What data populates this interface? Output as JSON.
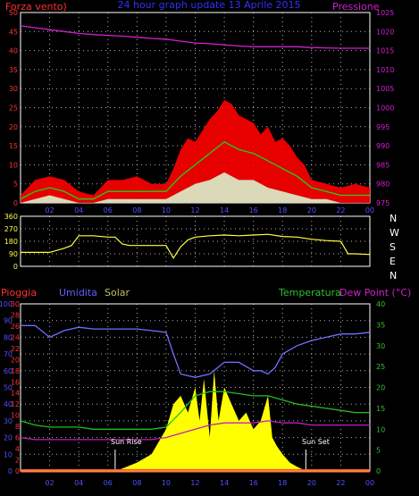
{
  "colors": {
    "background": "#000000",
    "wind": "#ff2020",
    "gust": "#ff0000",
    "wind_avg": "#20d020",
    "wind_low": "#d8ffd8",
    "pressure": "#d020d0",
    "direction": "#ffff40",
    "humidity": "#7070ff",
    "temperature": "#20c020",
    "dewpoint": "#c020c0",
    "solar": "#ffff00",
    "rain": "#ff2020",
    "axis_left_top": "#ff3030",
    "axis_right_top": "#d020d0",
    "axis_dir": "#ffff40",
    "axis_rain": "#ff3030",
    "axis_hum": "#5050ff",
    "axis_temp": "#30c030",
    "grid": "#ffffff",
    "xtick": "#5050ff",
    "bar_bottom": "#ff8040"
  },
  "header": {
    "title": "24 hour graph update 13 Aprile 2015",
    "left_label": "Forza vento)",
    "right_label": "Pressione"
  },
  "mid": {
    "dir_labels": [
      "N",
      "W",
      "S",
      "E",
      "N"
    ]
  },
  "bottom_labels": {
    "rain": "Pioggia",
    "humidity": "Umidita",
    "solar": "Solar",
    "temperature": "Temperatura",
    "dewpoint": "Dew Point (°C)",
    "sunrise": "Sun Rise",
    "sunset": "Sun Set"
  },
  "chart_data": [
    {
      "type": "line",
      "panel": "wind",
      "x_ticks": [
        "02",
        "04",
        "06",
        "08",
        "10",
        "12",
        "14",
        "16",
        "18",
        "20",
        "22",
        "00"
      ],
      "x_range": [
        0,
        24
      ],
      "y_left_ticks": [
        0,
        5,
        10,
        15,
        20,
        25,
        30,
        35,
        40,
        45,
        50
      ],
      "y_right_ticks": [
        975,
        980,
        985,
        990,
        995,
        1000,
        1005,
        1010,
        1015,
        1020,
        1025
      ],
      "y_left_range": [
        0,
        50
      ],
      "y_right_range": [
        975,
        1025
      ],
      "series": [
        {
          "key": "pressure",
          "axis": "right",
          "x": [
            0,
            1,
            2,
            3,
            4,
            5,
            6,
            7,
            8,
            9,
            10,
            11,
            12,
            13,
            14,
            15,
            16,
            17,
            18,
            19,
            20,
            21,
            22,
            23,
            24
          ],
          "y": [
            1021.5,
            1021,
            1020.5,
            1020,
            1019.5,
            1019.2,
            1019,
            1018.8,
            1018.5,
            1018.2,
            1018,
            1017.5,
            1017,
            1016.8,
            1016.5,
            1016.2,
            1016,
            1016,
            1016,
            1016,
            1015.8,
            1015.7,
            1015.6,
            1015.6,
            1015.6
          ]
        },
        {
          "key": "gust",
          "axis": "left",
          "x": [
            0,
            1,
            2,
            3,
            4,
            5,
            6,
            7,
            8,
            9,
            10,
            10.5,
            11,
            11.5,
            12,
            12.5,
            13,
            13.5,
            14,
            14.5,
            15,
            15.5,
            16,
            16.5,
            17,
            17.5,
            18,
            18.5,
            19,
            19.5,
            20,
            21,
            22,
            23,
            24
          ],
          "y": [
            2,
            6,
            7,
            6,
            3,
            2,
            6,
            6,
            7,
            5,
            5,
            9,
            14,
            17,
            16,
            19,
            22,
            24,
            27,
            26,
            23,
            22,
            21,
            18,
            20,
            16,
            17,
            15,
            12,
            10,
            6,
            5,
            4,
            5,
            4
          ]
        },
        {
          "key": "wind_avg",
          "axis": "left",
          "x": [
            0,
            1,
            2,
            3,
            4,
            5,
            6,
            7,
            8,
            9,
            10,
            11,
            12,
            13,
            14,
            15,
            16,
            17,
            18,
            19,
            20,
            21,
            22,
            23,
            24
          ],
          "y": [
            1,
            3,
            4,
            3,
            1,
            1,
            3,
            3,
            3,
            3,
            3,
            7,
            10,
            13,
            16,
            14,
            13,
            11,
            9,
            7,
            4,
            3,
            2,
            2,
            2
          ]
        },
        {
          "key": "wind_low",
          "axis": "left",
          "x": [
            0,
            1,
            2,
            3,
            4,
            5,
            6,
            7,
            8,
            9,
            10,
            11,
            12,
            13,
            14,
            15,
            16,
            17,
            18,
            19,
            20,
            21,
            22,
            23,
            24
          ],
          "y": [
            0,
            1,
            2,
            1,
            0,
            0,
            1,
            1,
            1,
            1,
            1,
            3,
            5,
            6,
            8,
            6,
            6,
            4,
            3,
            2,
            1,
            1,
            0,
            0,
            0
          ]
        }
      ]
    },
    {
      "type": "line",
      "panel": "direction",
      "x_range": [
        0,
        24
      ],
      "y_ticks": [
        0,
        90,
        180,
        270,
        360
      ],
      "y_range": [
        0,
        360
      ],
      "series": [
        {
          "key": "direction",
          "x": [
            0,
            1,
            2,
            3,
            3.5,
            4,
            5,
            6,
            6.5,
            7,
            7.5,
            8,
            9,
            10,
            10.5,
            11,
            11.5,
            12,
            13,
            14,
            15,
            16,
            17,
            18,
            19,
            20,
            21,
            22,
            22.5,
            23,
            24
          ],
          "y": [
            100,
            100,
            100,
            130,
            150,
            220,
            220,
            210,
            210,
            160,
            150,
            150,
            150,
            150,
            60,
            140,
            190,
            210,
            220,
            225,
            220,
            225,
            230,
            215,
            210,
            195,
            185,
            180,
            90,
            90,
            85
          ]
        }
      ]
    },
    {
      "type": "line",
      "panel": "climate",
      "x_range": [
        0,
        24
      ],
      "y_rain_ticks": [
        0,
        2,
        4,
        6,
        8,
        10,
        12,
        14,
        16,
        18,
        20,
        22,
        24,
        26,
        28,
        30
      ],
      "y_hum_ticks": [
        0,
        10,
        20,
        30,
        40,
        50,
        60,
        70,
        80,
        90,
        100
      ],
      "y_temp_ticks": [
        0,
        5,
        10,
        15,
        20,
        25,
        30,
        35,
        40
      ],
      "y_rain_range": [
        0,
        30
      ],
      "y_hum_range": [
        0,
        100
      ],
      "y_temp_range": [
        0,
        40
      ],
      "sunrise_hour": 6.5,
      "sunset_hour": 19.6,
      "series": [
        {
          "key": "humidity",
          "x": [
            0,
            1,
            2,
            3,
            4,
            5,
            6,
            7,
            8,
            9,
            10,
            10.5,
            11,
            12,
            13,
            14,
            15,
            16,
            16.5,
            17,
            17.5,
            18,
            19,
            20,
            21,
            22,
            23,
            24
          ],
          "y": [
            87,
            87,
            80,
            84,
            86,
            85,
            85,
            85,
            85,
            84,
            83,
            70,
            58,
            56,
            58,
            65,
            65,
            60,
            60,
            58,
            62,
            70,
            75,
            78,
            80,
            82,
            82,
            83
          ]
        },
        {
          "key": "temperature",
          "x": [
            0,
            1,
            2,
            3,
            4,
            5,
            6,
            7,
            8,
            9,
            10,
            11,
            12,
            13,
            14,
            15,
            16,
            17,
            18,
            19,
            20,
            21,
            22,
            23,
            24
          ],
          "y": [
            12,
            11,
            10.5,
            10.5,
            10.5,
            10,
            10,
            10,
            10,
            10,
            10.5,
            14,
            18,
            19,
            19,
            18.5,
            18,
            18,
            17,
            16,
            15.5,
            15,
            14.5,
            14,
            14
          ]
        },
        {
          "key": "dewpoint",
          "x": [
            0,
            1,
            2,
            3,
            4,
            5,
            6,
            7,
            8,
            9,
            10,
            11,
            12,
            13,
            14,
            15,
            16,
            17,
            18,
            19,
            20,
            21,
            22,
            23,
            24
          ],
          "y": [
            8,
            7.5,
            7.5,
            7.5,
            7.5,
            7.5,
            7.5,
            7.5,
            7.5,
            7.5,
            8,
            9,
            10,
            11,
            11.5,
            11.5,
            11.5,
            12,
            11.5,
            11.5,
            11,
            11,
            11,
            11,
            11
          ]
        },
        {
          "key": "solar",
          "x": [
            6.5,
            7,
            8,
            9,
            10,
            10.5,
            11,
            11.5,
            12,
            12.3,
            12.6,
            13,
            13.3,
            13.6,
            14,
            14.5,
            15,
            15.5,
            16,
            16.5,
            17,
            17.3,
            17.6,
            18,
            18.5,
            19,
            19.6
          ],
          "y": [
            0,
            0.3,
            1,
            2,
            5,
            8,
            9,
            7,
            10,
            6,
            11,
            4,
            12,
            6,
            10,
            8,
            6,
            7,
            5,
            6,
            9,
            4,
            3,
            2,
            1,
            0.5,
            0
          ]
        },
        {
          "key": "rain",
          "x": [
            0,
            24
          ],
          "y": [
            0,
            0
          ]
        }
      ]
    }
  ]
}
